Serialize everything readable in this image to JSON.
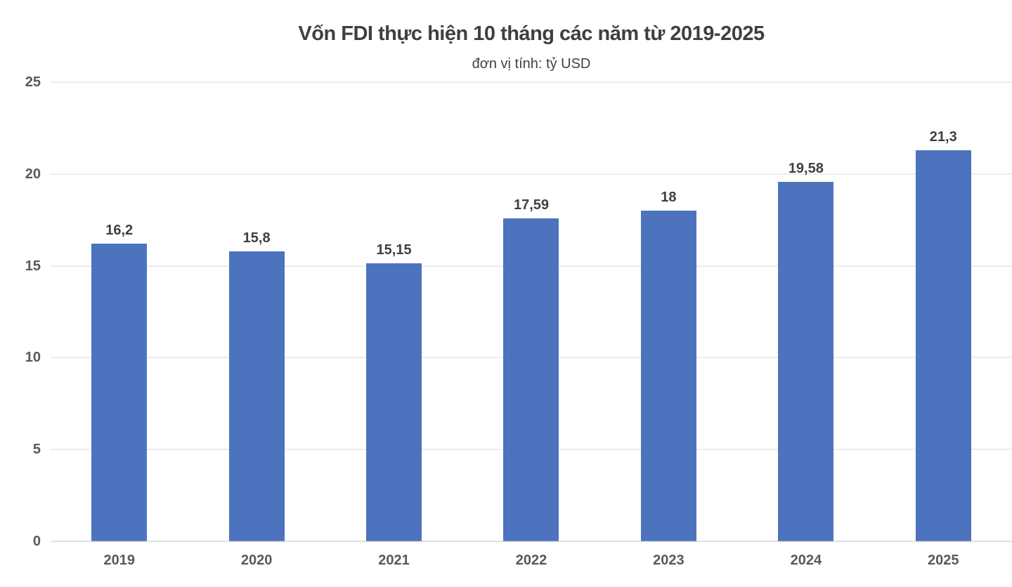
{
  "chart_data": {
    "type": "bar",
    "title": "Vốn FDI thực hiện 10 tháng các năm từ 2019-2025",
    "subtitle": "đơn vị tính: tỷ USD",
    "categories": [
      "2019",
      "2020",
      "2021",
      "2022",
      "2023",
      "2024",
      "2025"
    ],
    "values": [
      16.2,
      15.8,
      15.15,
      17.59,
      18,
      19.58,
      21.3
    ],
    "value_labels": [
      "16,2",
      "15,8",
      "15,15",
      "17,59",
      "18",
      "19,58",
      "21,3"
    ],
    "xlabel": "",
    "ylabel": "",
    "ylim": [
      0,
      25
    ],
    "yticks": [
      0,
      5,
      10,
      15,
      20,
      25
    ],
    "grid": true,
    "legend": false,
    "colors": {
      "bar": "#4e73be",
      "title": "#3f3f3f",
      "data_label": "#404040",
      "tick_label": "#595959",
      "gridline": "#d9d9d9",
      "baseline": "#c0c0c0"
    }
  }
}
